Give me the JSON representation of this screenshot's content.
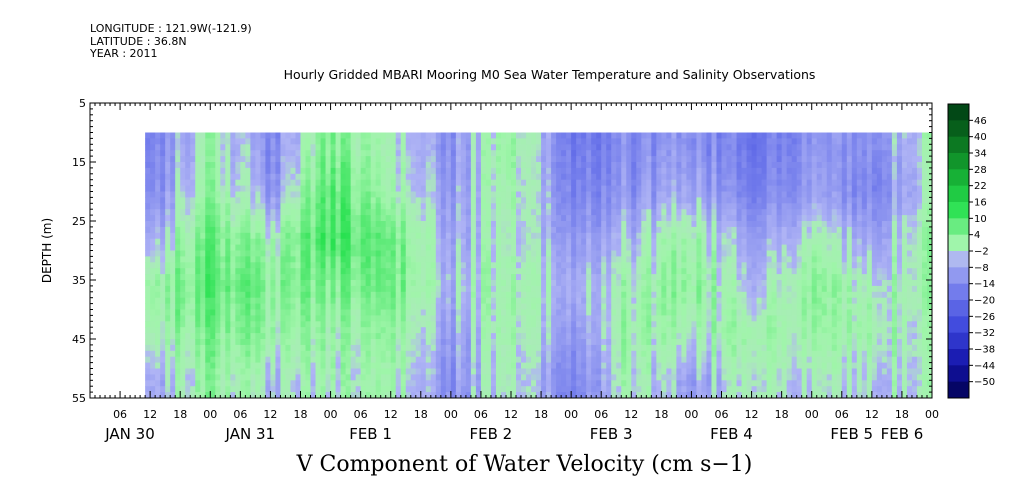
{
  "header": {
    "longitude": "LONGITUDE : 121.9W(-121.9)",
    "latitude": "LATITUDE : 36.8N",
    "year": "YEAR : 2011"
  },
  "chart_data": {
    "type": "heatmap",
    "title": "Hourly Gridded MBARI Mooring M0 Sea Water Temperature and Salinity Observations",
    "subtitle": "V Component of Water Velocity (cm s−1)",
    "ylabel": "DEPTH (m)",
    "ylim": [
      5,
      55
    ],
    "y_reversed": true,
    "y_ticks": [
      "5",
      "15",
      "25",
      "35",
      "45",
      "55"
    ],
    "x_range_hours": [
      0,
      168
    ],
    "x_hour_ticks": [
      "06",
      "12",
      "18",
      "00",
      "06",
      "12",
      "18",
      "00",
      "06",
      "12",
      "18",
      "00",
      "06",
      "12",
      "18",
      "00",
      "06",
      "12",
      "18",
      "00",
      "06",
      "12",
      "18",
      "00",
      "06",
      "12",
      "18",
      "00"
    ],
    "x_date_labels": [
      "JAN 30",
      "JAN 31",
      "FEB  1",
      "FEB  2",
      "FEB  3",
      "FEB  4",
      "FEB  5",
      "FEB  6"
    ],
    "data_extent": {
      "start_hour": 11,
      "end_hour": 168,
      "depth_top": 10,
      "depth_bottom": 55
    },
    "colorbar": {
      "levels": [
        "46",
        "40",
        "34",
        "28",
        "22",
        "16",
        "10",
        "4",
        "−2",
        "−8",
        "−14",
        "−20",
        "−26",
        "−32",
        "−38",
        "−44",
        "−50"
      ],
      "min": -50,
      "max": 52
    },
    "sampled_field": {
      "depths": [
        12,
        20,
        28,
        36,
        44,
        52
      ],
      "hours": [
        12,
        24,
        36,
        48,
        60,
        72,
        84,
        96,
        108,
        120,
        132,
        144,
        156,
        166
      ],
      "values": [
        [
          -12,
          4,
          -10,
          8,
          2,
          -8,
          6,
          -12,
          -10,
          -8,
          -14,
          -8,
          -10,
          2
        ],
        [
          -10,
          6,
          -8,
          12,
          4,
          -6,
          4,
          -10,
          -8,
          -4,
          -12,
          -6,
          -12,
          0
        ],
        [
          -4,
          10,
          2,
          14,
          10,
          -4,
          2,
          -6,
          -2,
          4,
          -6,
          2,
          -6,
          4
        ],
        [
          4,
          12,
          6,
          8,
          10,
          -2,
          4,
          -2,
          2,
          6,
          -2,
          6,
          0,
          4
        ],
        [
          2,
          8,
          4,
          4,
          6,
          -6,
          4,
          -6,
          4,
          2,
          4,
          4,
          2,
          2
        ],
        [
          -4,
          6,
          -2,
          2,
          4,
          -8,
          2,
          -10,
          2,
          -6,
          2,
          0,
          -2,
          2
        ]
      ]
    }
  }
}
